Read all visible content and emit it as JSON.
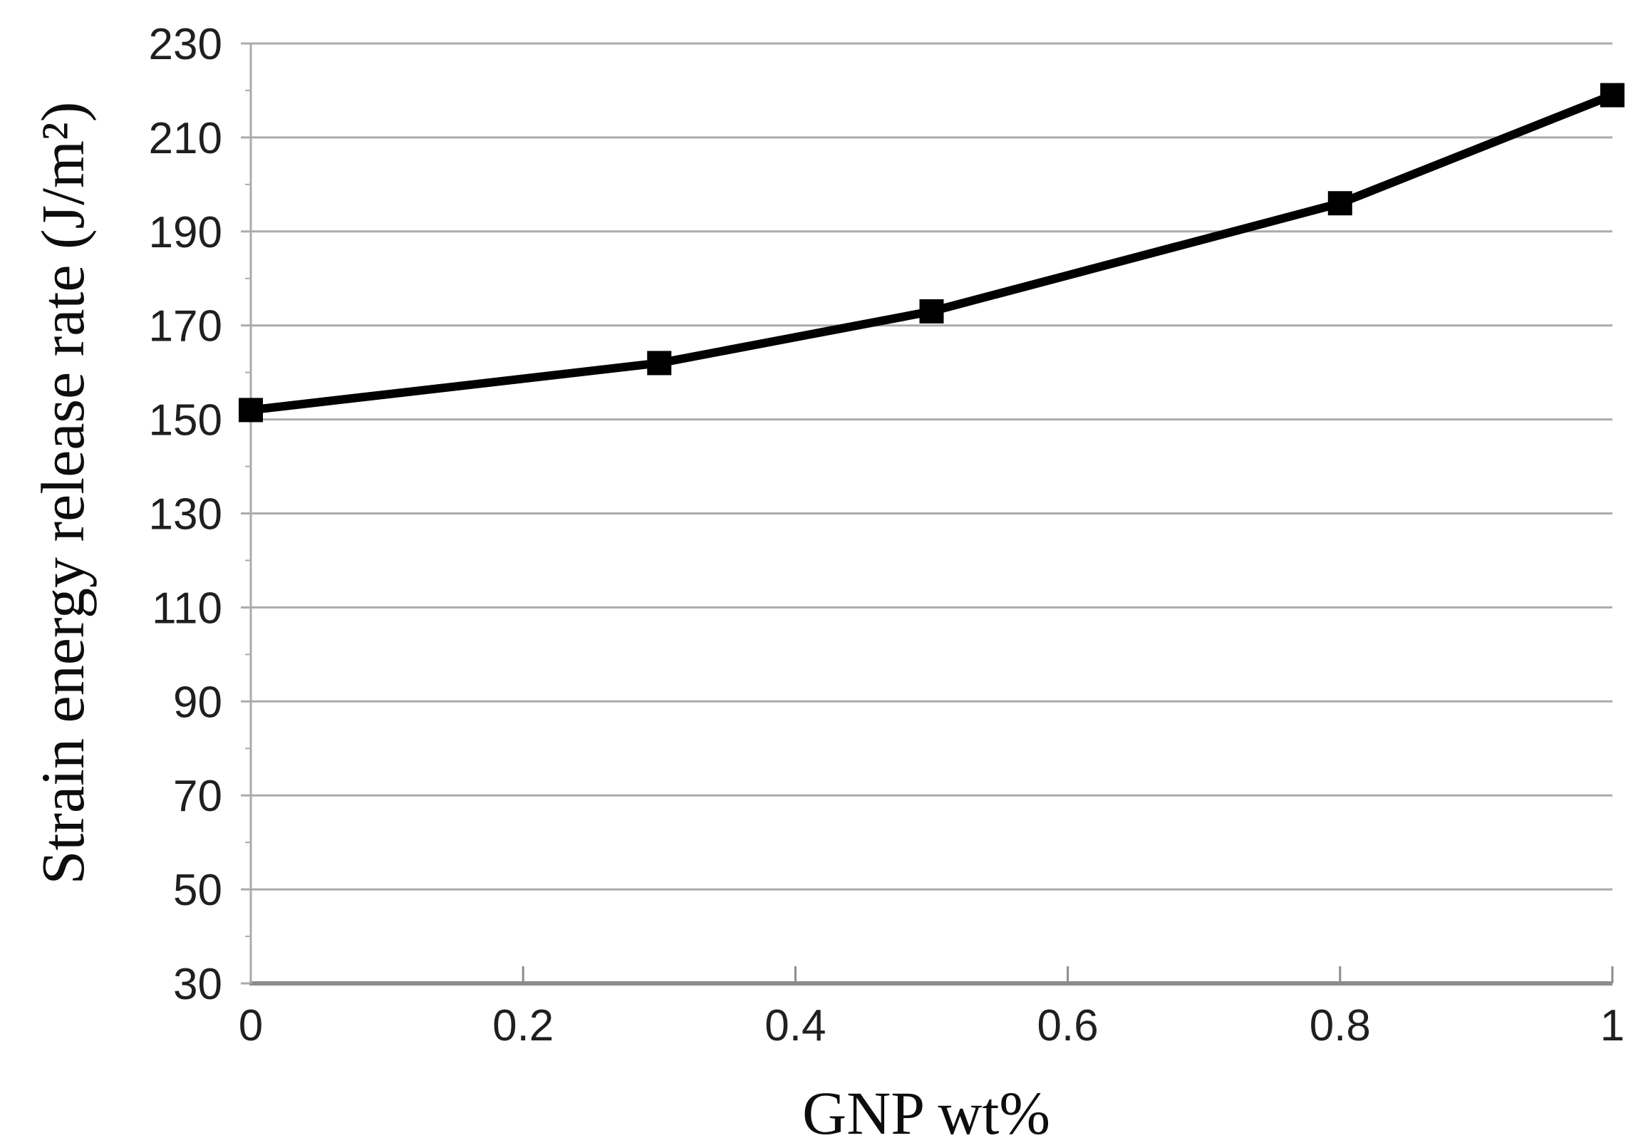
{
  "chart_data": {
    "type": "line",
    "title": "",
    "xlabel": "GNP wt%",
    "ylabel": "Strain energy release rate (J/m²)",
    "xlim": [
      0,
      1
    ],
    "ylim": [
      30,
      230
    ],
    "xticks": [
      {
        "label": "0",
        "value": 0
      },
      {
        "label": "0.2",
        "value": 0.2
      },
      {
        "label": "0.4",
        "value": 0.4
      },
      {
        "label": "0.6",
        "value": 0.6
      },
      {
        "label": "0.8",
        "value": 0.8
      },
      {
        "label": "1",
        "value": 1
      }
    ],
    "yticks": [
      230,
      210,
      190,
      170,
      150,
      130,
      110,
      90,
      70,
      50,
      30
    ],
    "y_minor_tick_step": 10,
    "grid": "horizontal-only",
    "legend_position": "none",
    "series": [
      {
        "name": "Strain energy release rate",
        "marker": "filled-square",
        "color": "#000000",
        "x": [
          0,
          0.3,
          0.5,
          0.8,
          1
        ],
        "y": [
          152,
          162,
          173,
          196,
          219
        ]
      }
    ],
    "colors": {
      "gridline": "#ababab",
      "axis_line": "#8c8c8c",
      "tick_text": "#1f1f1f",
      "series_line": "#000000",
      "background": "#ffffff"
    }
  }
}
